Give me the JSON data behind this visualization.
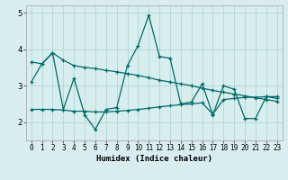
{
  "xlabel": "Humidex (Indice chaleur)",
  "xlim": [
    -0.5,
    23.5
  ],
  "ylim": [
    1.5,
    5.2
  ],
  "yticks": [
    2,
    3,
    4,
    5
  ],
  "xticks": [
    0,
    1,
    2,
    3,
    4,
    5,
    6,
    7,
    8,
    9,
    10,
    11,
    12,
    13,
    14,
    15,
    16,
    17,
    18,
    19,
    20,
    21,
    22,
    23
  ],
  "bg_color": "#d8eeee",
  "grid_color": "#b8d8d8",
  "line_color": "#006868",
  "line1_y": [
    3.1,
    3.6,
    3.9,
    2.35,
    3.2,
    2.2,
    1.8,
    2.35,
    2.4,
    3.55,
    4.1,
    4.93,
    3.8,
    3.75,
    2.5,
    2.55,
    3.05,
    2.2,
    3.0,
    2.9,
    2.1,
    2.1,
    2.7,
    2.65
  ],
  "line2_y": [
    3.65,
    3.6,
    3.9,
    3.7,
    3.55,
    3.5,
    3.47,
    3.42,
    3.38,
    3.33,
    3.28,
    3.22,
    3.15,
    3.1,
    3.05,
    3.0,
    2.93,
    2.87,
    2.82,
    2.77,
    2.72,
    2.67,
    2.62,
    2.57
  ],
  "line3_y": [
    2.35,
    2.35,
    2.35,
    2.33,
    2.3,
    2.3,
    2.28,
    2.28,
    2.3,
    2.32,
    2.35,
    2.38,
    2.42,
    2.45,
    2.48,
    2.5,
    2.53,
    2.22,
    2.62,
    2.65,
    2.68,
    2.68,
    2.7,
    2.7
  ]
}
